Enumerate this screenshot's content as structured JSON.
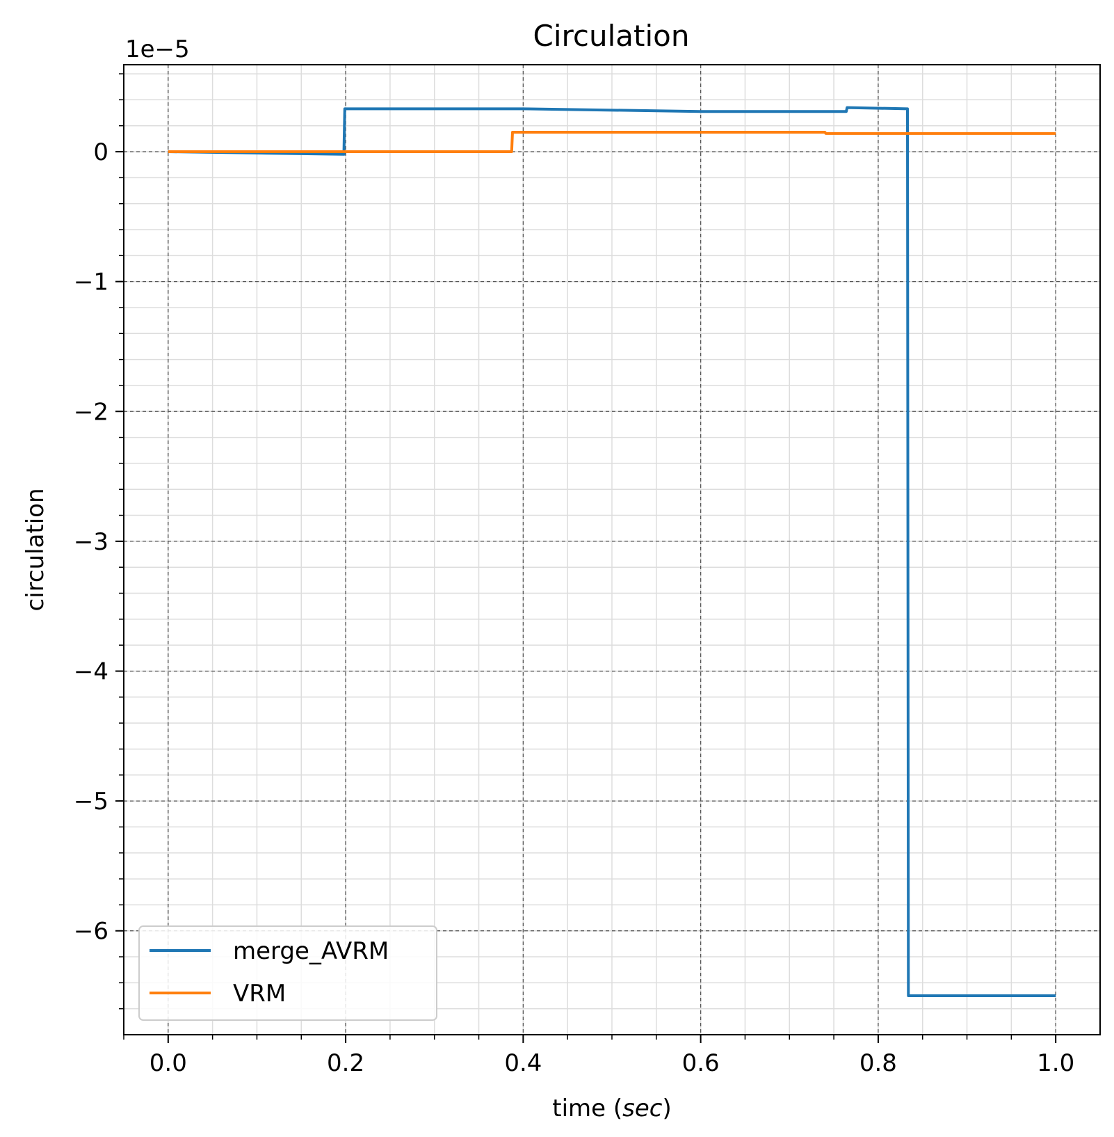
{
  "chart_data": {
    "type": "line",
    "title": "Circulation",
    "xlabel_main": "time (",
    "xlabel_unit": "sec",
    "xlabel_close": ")",
    "ylabel": "circulation",
    "y_offset_label": "1e−5",
    "xlim": [
      -0.05,
      1.05
    ],
    "ylim": [
      -6.8,
      0.67
    ],
    "x_ticks": [
      0.0,
      0.2,
      0.4,
      0.6,
      0.8,
      1.0
    ],
    "x_tick_labels": [
      "0.0",
      "0.2",
      "0.4",
      "0.6",
      "0.8",
      "1.0"
    ],
    "y_ticks": [
      0,
      -1,
      -2,
      -3,
      -4,
      -5,
      -6
    ],
    "y_tick_labels": [
      "0",
      "−1",
      "−2",
      "−3",
      "−4",
      "−5",
      "−6"
    ],
    "x_minor_step": 0.05,
    "y_minor_step": 0.2,
    "grid": true,
    "legend_placement": "lower-left",
    "series": [
      {
        "name": "merge_AVRM",
        "color": "#1f77b4",
        "x": [
          0.0,
          0.1,
          0.198,
          0.199,
          0.4,
          0.6,
          0.764,
          0.765,
          0.833,
          0.834,
          0.9,
          1.0
        ],
        "y": [
          0.0,
          -0.01,
          -0.02,
          0.33,
          0.33,
          0.31,
          0.31,
          0.34,
          0.33,
          -6.5,
          -6.5,
          -6.5
        ]
      },
      {
        "name": "VRM",
        "color": "#ff7f0e",
        "x": [
          0.0,
          0.2,
          0.387,
          0.388,
          0.55,
          0.74,
          0.741,
          0.9,
          1.0
        ],
        "y": [
          0.0,
          0.0,
          0.0,
          0.15,
          0.15,
          0.15,
          0.14,
          0.14,
          0.14
        ]
      }
    ]
  }
}
